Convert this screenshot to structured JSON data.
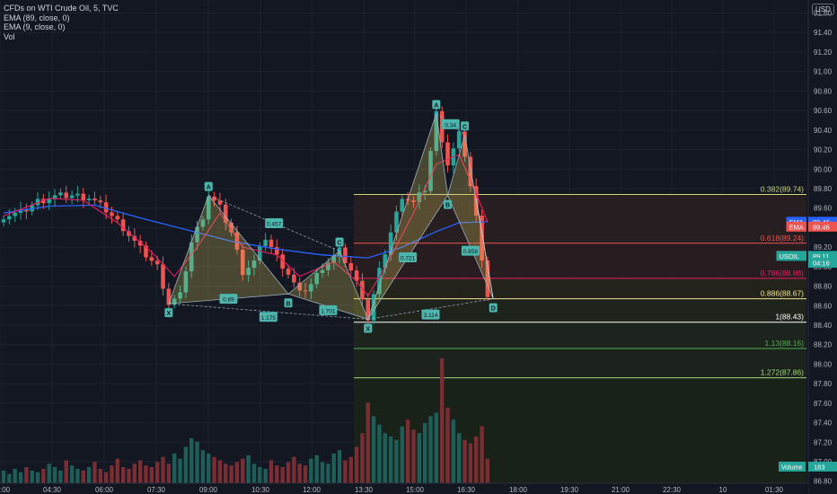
{
  "header": {
    "symbol_line": "CFDs on WTI Crude Oil, 5, TVC",
    "indicators": [
      "EMA (89, close, 0)",
      "EMA (9, close, 0)",
      "Vol"
    ]
  },
  "currency_button": "USD",
  "colors": {
    "background": "#131722",
    "bull": "#26a69a",
    "bear": "#ef5350",
    "ema89": "#2962ff",
    "ema9": "#e91e63",
    "pattern_fill": "#d9c65a",
    "pattern_line": "#9fb0c0"
  },
  "chart_data": {
    "type": "candlestick",
    "x_tick_labels": [
      ":00",
      "04:30",
      "06:00",
      "07:30",
      "09:00",
      "10:30",
      "12:00",
      "13:30",
      "15:00",
      "16:30",
      "18:00",
      "19:30",
      "21:00",
      "22:30",
      "10",
      "01:30"
    ],
    "y_tick_labels": [
      "91.60",
      "91.40",
      "91.20",
      "91.00",
      "90.80",
      "90.60",
      "90.40",
      "90.20",
      "90.00",
      "89.80",
      "89.60",
      "89.40",
      "89.20",
      "89.00",
      "88.80",
      "88.60",
      "88.40",
      "88.20",
      "88.00",
      "87.80",
      "87.60",
      "87.40",
      "87.20",
      "87.00",
      "86.80"
    ],
    "y_range": [
      86.77,
      91.66
    ],
    "price_path": [
      [
        0,
        89.52
      ],
      [
        3,
        89.55
      ],
      [
        6,
        89.67
      ],
      [
        9,
        89.72
      ],
      [
        12,
        89.73
      ],
      [
        15,
        89.71
      ],
      [
        18,
        89.58
      ],
      [
        21,
        89.4
      ],
      [
        24,
        89.18
      ],
      [
        27,
        89.0
      ],
      [
        29,
        88.62
      ],
      [
        31,
        88.7
      ],
      [
        33,
        89.25
      ],
      [
        35,
        89.52
      ],
      [
        36,
        89.73
      ],
      [
        38,
        89.6
      ],
      [
        40,
        89.35
      ],
      [
        42,
        88.95
      ],
      [
        44,
        89.05
      ],
      [
        46,
        89.3
      ],
      [
        48,
        89.1
      ],
      [
        50,
        88.93
      ],
      [
        52,
        88.72
      ],
      [
        54,
        88.82
      ],
      [
        56,
        89.0
      ],
      [
        58,
        89.1
      ],
      [
        59,
        89.16
      ],
      [
        61,
        88.96
      ],
      [
        63,
        88.7
      ],
      [
        64,
        88.46
      ],
      [
        66,
        88.95
      ],
      [
        68,
        89.35
      ],
      [
        70,
        89.73
      ],
      [
        72,
        89.65
      ],
      [
        74,
        89.8
      ],
      [
        76,
        90.57
      ],
      [
        78,
        90.05
      ],
      [
        80,
        90.35
      ],
      [
        81,
        90.15
      ],
      [
        83,
        89.5
      ],
      [
        85,
        88.7
      ]
    ],
    "ema89_path": [
      [
        0,
        89.55
      ],
      [
        8,
        89.62
      ],
      [
        16,
        89.63
      ],
      [
        24,
        89.5
      ],
      [
        32,
        89.38
      ],
      [
        40,
        89.26
      ],
      [
        48,
        89.18
      ],
      [
        56,
        89.12
      ],
      [
        64,
        89.09
      ],
      [
        70,
        89.2
      ],
      [
        76,
        89.36
      ],
      [
        80,
        89.45
      ],
      [
        85,
        89.46
      ]
    ],
    "ema9_path": [
      [
        0,
        89.52
      ],
      [
        8,
        89.7
      ],
      [
        14,
        89.68
      ],
      [
        20,
        89.45
      ],
      [
        26,
        89.15
      ],
      [
        30,
        88.9
      ],
      [
        34,
        89.2
      ],
      [
        38,
        89.55
      ],
      [
        42,
        89.2
      ],
      [
        48,
        89.12
      ],
      [
        52,
        88.9
      ],
      [
        58,
        89.05
      ],
      [
        62,
        88.85
      ],
      [
        64,
        88.7
      ],
      [
        68,
        89.1
      ],
      [
        72,
        89.55
      ],
      [
        76,
        90.05
      ],
      [
        80,
        90.15
      ],
      [
        83,
        89.75
      ],
      [
        85,
        89.46
      ]
    ],
    "volume_heights": [
      8,
      6,
      9,
      7,
      10,
      8,
      7,
      9,
      12,
      10,
      8,
      14,
      11,
      9,
      8,
      10,
      13,
      9,
      7,
      11,
      15,
      10,
      9,
      12,
      14,
      11,
      10,
      13,
      16,
      12,
      18,
      15,
      22,
      27,
      25,
      20,
      18,
      16,
      14,
      12,
      11,
      13,
      15,
      17,
      12,
      10,
      9,
      14,
      11,
      10,
      13,
      16,
      12,
      11,
      15,
      17,
      13,
      12,
      18,
      20,
      14,
      16,
      22,
      30,
      48,
      40,
      35,
      30,
      28,
      26,
      34,
      38,
      32,
      30,
      36,
      40,
      42,
      74,
      45,
      38,
      30,
      26,
      24,
      28,
      34,
      15
    ],
    "last_bar_volume_fraction": 0.15,
    "harmonic_pattern_1": {
      "points": [
        {
          "label": "X",
          "bar": 29,
          "price": 88.62
        },
        {
          "label": "A",
          "bar": 36,
          "price": 89.73
        },
        {
          "label": "B",
          "bar": 50,
          "price": 88.72
        },
        {
          "label": "C",
          "bar": 59,
          "price": 89.16
        },
        {
          "label": "D",
          "bar": 64,
          "price": 88.46
        }
      ],
      "ratios": [
        "0.89",
        "0.457",
        "1.175",
        "1.701"
      ]
    },
    "harmonic_pattern_2": {
      "points": [
        {
          "label": "X",
          "bar": 64,
          "price": 88.46
        },
        {
          "label": "A",
          "bar": 76,
          "price": 90.57
        },
        {
          "label": "B",
          "bar": 78,
          "price": 89.73
        },
        {
          "label": "C",
          "bar": 81,
          "price": 90.35
        },
        {
          "label": "D",
          "bar": 86,
          "price": 88.67
        }
      ],
      "ratios": [
        "0.721",
        "0.34",
        "3.114",
        "0.858"
      ]
    },
    "fib_levels": [
      {
        "label": "0.382(89.74)",
        "price": 89.74,
        "color": "#c9d67a"
      },
      {
        "label": "0.618(89.24)",
        "price": 89.24,
        "color": "#ef5350"
      },
      {
        "label": "0.786(88.88)",
        "price": 88.88,
        "color": "#e91e63"
      },
      {
        "label": "0.886(88.67)",
        "price": 88.67,
        "color": "#f0e68c"
      },
      {
        "label": "1(88.43)",
        "price": 88.43,
        "color": "#ffffff"
      },
      {
        "label": "1.13(88.16)",
        "price": 88.16,
        "color": "#4caf50"
      },
      {
        "label": "1.272(87.86)",
        "price": 87.86,
        "color": "#a5d67a"
      }
    ],
    "price_labels": [
      {
        "text": "EMA",
        "value": "89.46",
        "color": "#2962ff",
        "price": 89.46
      },
      {
        "text": "EMA",
        "value": "89.46",
        "color": "#ef5350",
        "price": 89.41
      },
      {
        "text": "USOIL",
        "value": "89.11",
        "color": "#26a69a",
        "price": 89.11
      },
      {
        "text": "",
        "value": "04:16",
        "color": "#26a69a",
        "price": 89.04
      }
    ],
    "volume_badge": {
      "text": "Volume",
      "value": "183"
    }
  }
}
